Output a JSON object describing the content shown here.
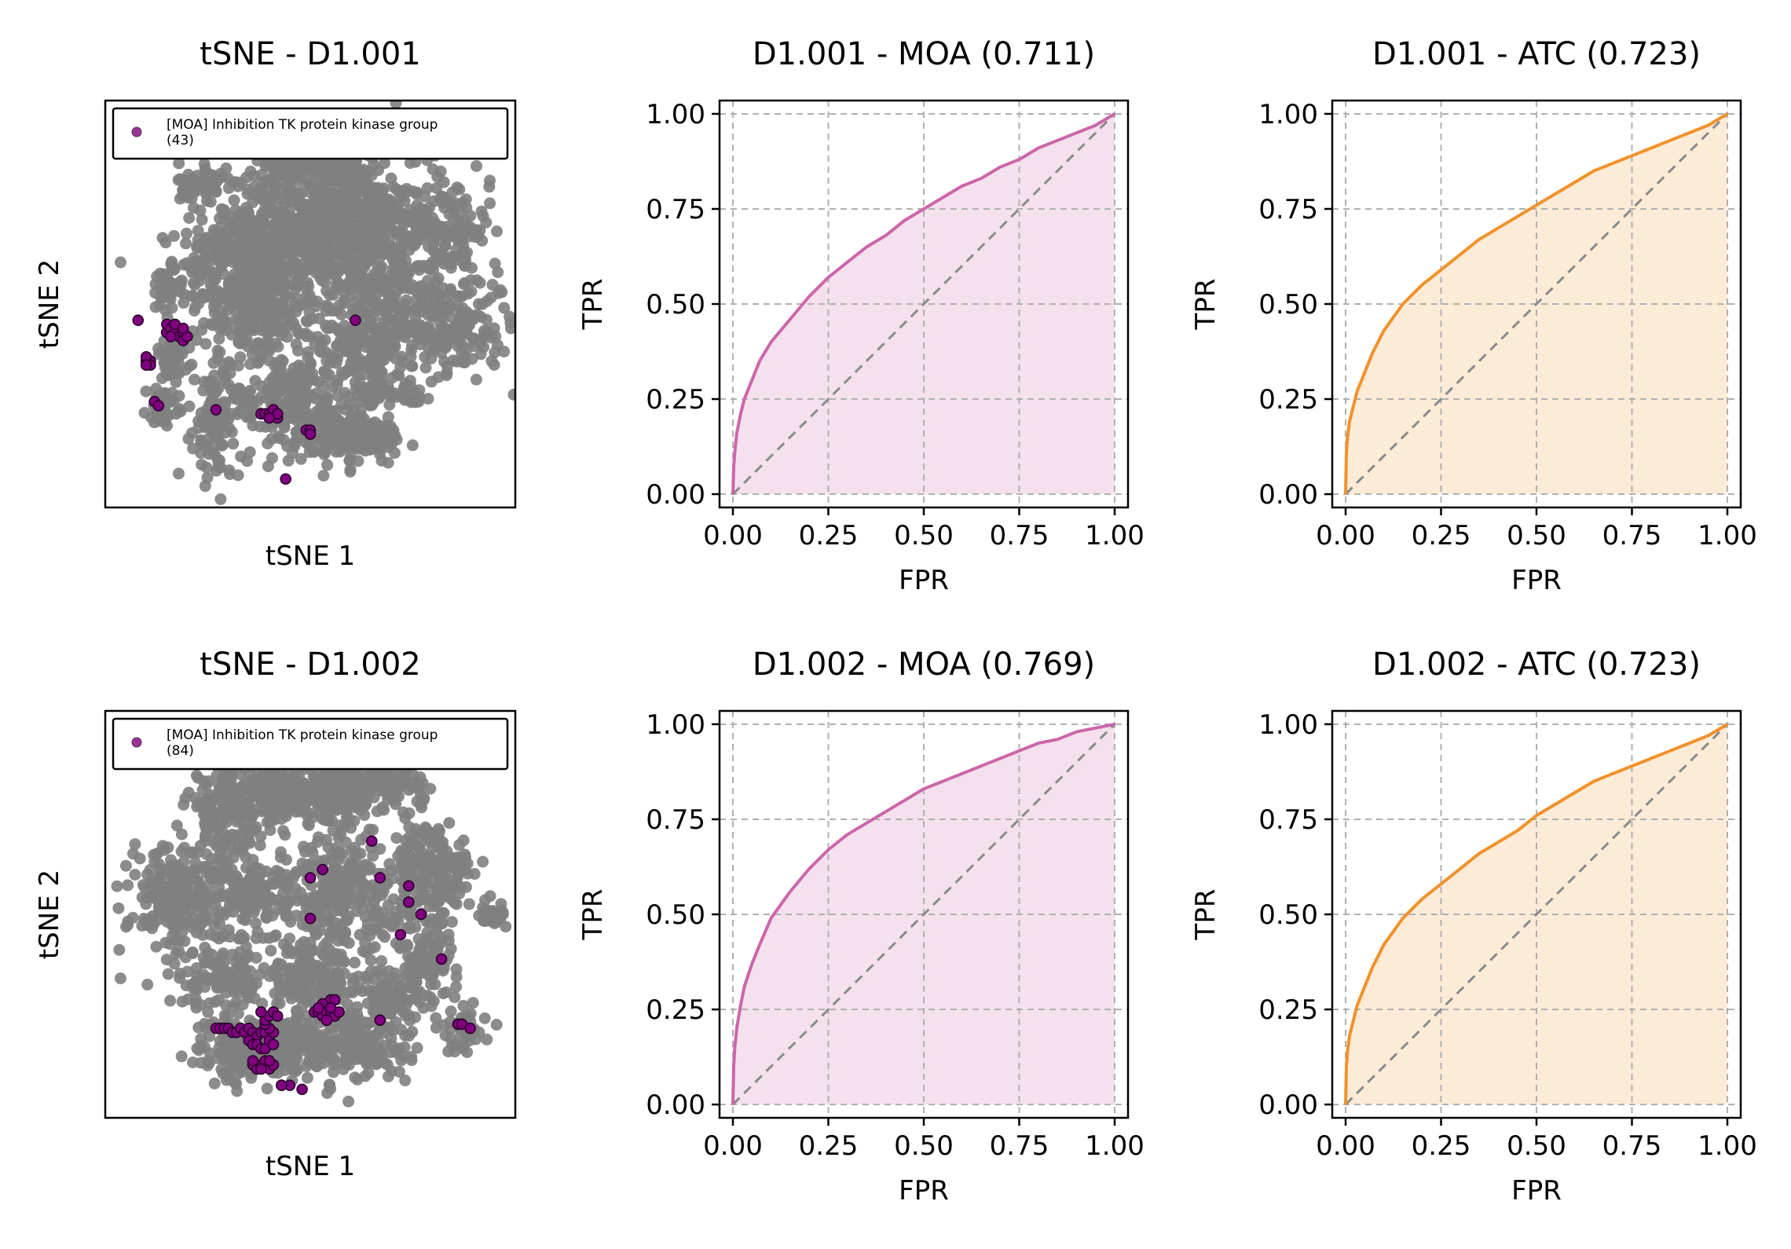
{
  "colors": {
    "background_points": "#808080",
    "highlight_points": "#800080",
    "highlight_edge": "#2a002a",
    "moa_curve": "#cc66aa",
    "moa_fill": "#f5e0ee",
    "atc_curve": "#f0922b",
    "atc_fill": "#fcebd7",
    "diagonal": "#8a8a8a",
    "grid": "#b0b0b0"
  },
  "chart_data": [
    {
      "type": "scatter",
      "id": "tsne-d1-001",
      "title": "tSNE - D1.001",
      "xlabel": "tSNE 1",
      "ylabel": "tSNE 2",
      "legend": {
        "location": "top",
        "label_line1": "[MOA] Inhibition TK protein kinase group",
        "label_line2": "(43)"
      },
      "background_clusters": [
        {
          "x": 0.32,
          "y": 0.56,
          "sx": 0.07,
          "sy": 0.09,
          "n": 260
        },
        {
          "x": 0.45,
          "y": 0.67,
          "sx": 0.1,
          "sy": 0.08,
          "n": 380
        },
        {
          "x": 0.56,
          "y": 0.72,
          "sx": 0.09,
          "sy": 0.08,
          "n": 320
        },
        {
          "x": 0.66,
          "y": 0.62,
          "sx": 0.06,
          "sy": 0.1,
          "n": 220
        },
        {
          "x": 0.82,
          "y": 0.68,
          "sx": 0.06,
          "sy": 0.08,
          "n": 180
        },
        {
          "x": 0.83,
          "y": 0.45,
          "sx": 0.08,
          "sy": 0.06,
          "n": 240
        },
        {
          "x": 0.62,
          "y": 0.4,
          "sx": 0.05,
          "sy": 0.06,
          "n": 150
        },
        {
          "x": 0.5,
          "y": 0.86,
          "sx": 0.07,
          "sy": 0.03,
          "n": 120
        },
        {
          "x": 0.24,
          "y": 0.79,
          "sx": 0.03,
          "sy": 0.03,
          "n": 60
        },
        {
          "x": 0.42,
          "y": 0.48,
          "sx": 0.06,
          "sy": 0.05,
          "n": 130
        },
        {
          "x": 0.45,
          "y": 0.26,
          "sx": 0.08,
          "sy": 0.06,
          "n": 200
        },
        {
          "x": 0.57,
          "y": 0.18,
          "sx": 0.06,
          "sy": 0.04,
          "n": 120
        },
        {
          "x": 0.27,
          "y": 0.22,
          "sx": 0.03,
          "sy": 0.08,
          "n": 110
        },
        {
          "x": 0.15,
          "y": 0.54,
          "sx": 0.02,
          "sy": 0.03,
          "n": 40
        },
        {
          "x": 0.16,
          "y": 0.37,
          "sx": 0.02,
          "sy": 0.03,
          "n": 50
        },
        {
          "x": 0.14,
          "y": 0.25,
          "sx": 0.02,
          "sy": 0.02,
          "n": 40
        },
        {
          "x": 0.66,
          "y": 0.17,
          "sx": 0.04,
          "sy": 0.03,
          "n": 50
        },
        {
          "x": 0.66,
          "y": 0.29,
          "sx": 0.03,
          "sy": 0.03,
          "n": 40
        },
        {
          "x": 0.75,
          "y": 0.28,
          "sx": 0.02,
          "sy": 0.02,
          "n": 20
        }
      ],
      "highlight_points": [
        [
          0.08,
          0.46
        ],
        [
          0.15,
          0.43
        ],
        [
          0.15,
          0.45
        ],
        [
          0.16,
          0.44
        ],
        [
          0.17,
          0.43
        ],
        [
          0.18,
          0.42
        ],
        [
          0.19,
          0.43
        ],
        [
          0.19,
          0.41
        ],
        [
          0.17,
          0.45
        ],
        [
          0.2,
          0.42
        ],
        [
          0.19,
          0.44
        ],
        [
          0.16,
          0.42
        ],
        [
          0.1,
          0.36
        ],
        [
          0.11,
          0.36
        ],
        [
          0.1,
          0.37
        ],
        [
          0.11,
          0.35
        ],
        [
          0.1,
          0.35
        ],
        [
          0.12,
          0.26
        ],
        [
          0.13,
          0.25
        ],
        [
          0.27,
          0.24
        ],
        [
          0.38,
          0.23
        ],
        [
          0.39,
          0.23
        ],
        [
          0.4,
          0.23
        ],
        [
          0.41,
          0.23
        ],
        [
          0.42,
          0.22
        ],
        [
          0.41,
          0.24
        ],
        [
          0.42,
          0.23
        ],
        [
          0.4,
          0.22
        ],
        [
          0.49,
          0.19
        ],
        [
          0.5,
          0.19
        ],
        [
          0.5,
          0.18
        ],
        [
          0.44,
          0.07
        ],
        [
          0.61,
          0.46
        ]
      ]
    },
    {
      "type": "line",
      "id": "roc-d1-001-moa",
      "title": "D1.001 - MOA (0.711)",
      "xlabel": "FPR",
      "ylabel": "TPR",
      "series_color_key": "moa",
      "xlim": [
        0,
        1
      ],
      "ylim": [
        0,
        1
      ],
      "xticks": [
        "0.00",
        "0.25",
        "0.50",
        "0.75",
        "1.00"
      ],
      "yticks": [
        "0.00",
        "0.25",
        "0.50",
        "0.75",
        "1.00"
      ],
      "x": [
        0,
        0.002,
        0.005,
        0.01,
        0.02,
        0.03,
        0.05,
        0.07,
        0.1,
        0.15,
        0.2,
        0.25,
        0.3,
        0.35,
        0.4,
        0.45,
        0.5,
        0.55,
        0.6,
        0.65,
        0.7,
        0.75,
        0.8,
        0.85,
        0.9,
        0.95,
        1.0
      ],
      "y": [
        0,
        0.07,
        0.11,
        0.16,
        0.21,
        0.25,
        0.3,
        0.35,
        0.4,
        0.46,
        0.52,
        0.57,
        0.61,
        0.65,
        0.68,
        0.72,
        0.75,
        0.78,
        0.81,
        0.83,
        0.86,
        0.88,
        0.91,
        0.93,
        0.95,
        0.97,
        1.0
      ]
    },
    {
      "type": "line",
      "id": "roc-d1-001-atc",
      "title": "D1.001 - ATC (0.723)",
      "xlabel": "FPR",
      "ylabel": "TPR",
      "series_color_key": "atc",
      "xlim": [
        0,
        1
      ],
      "ylim": [
        0,
        1
      ],
      "xticks": [
        "0.00",
        "0.25",
        "0.50",
        "0.75",
        "1.00"
      ],
      "yticks": [
        "0.00",
        "0.25",
        "0.50",
        "0.75",
        "1.00"
      ],
      "x": [
        0,
        0.002,
        0.005,
        0.01,
        0.02,
        0.03,
        0.05,
        0.07,
        0.1,
        0.15,
        0.2,
        0.25,
        0.3,
        0.35,
        0.4,
        0.45,
        0.5,
        0.55,
        0.6,
        0.65,
        0.7,
        0.75,
        0.8,
        0.85,
        0.9,
        0.95,
        1.0
      ],
      "y": [
        0,
        0.11,
        0.15,
        0.19,
        0.23,
        0.27,
        0.32,
        0.37,
        0.43,
        0.5,
        0.55,
        0.59,
        0.63,
        0.67,
        0.7,
        0.73,
        0.76,
        0.79,
        0.82,
        0.85,
        0.87,
        0.89,
        0.91,
        0.93,
        0.95,
        0.97,
        1.0
      ]
    },
    {
      "type": "scatter",
      "id": "tsne-d1-002",
      "title": "tSNE - D1.002",
      "xlabel": "tSNE 1",
      "ylabel": "tSNE 2",
      "legend": {
        "location": "top",
        "label_line1": "[MOA] Inhibition TK protein kinase group",
        "label_line2": "(84)"
      },
      "background_clusters": [
        {
          "x": 0.3,
          "y": 0.77,
          "sx": 0.05,
          "sy": 0.05,
          "n": 160
        },
        {
          "x": 0.42,
          "y": 0.8,
          "sx": 0.05,
          "sy": 0.04,
          "n": 160
        },
        {
          "x": 0.55,
          "y": 0.8,
          "sx": 0.06,
          "sy": 0.04,
          "n": 180
        },
        {
          "x": 0.7,
          "y": 0.82,
          "sx": 0.04,
          "sy": 0.03,
          "n": 90
        },
        {
          "x": 0.18,
          "y": 0.54,
          "sx": 0.06,
          "sy": 0.08,
          "n": 230
        },
        {
          "x": 0.35,
          "y": 0.55,
          "sx": 0.05,
          "sy": 0.06,
          "n": 150
        },
        {
          "x": 0.58,
          "y": 0.54,
          "sx": 0.08,
          "sy": 0.08,
          "n": 280
        },
        {
          "x": 0.8,
          "y": 0.6,
          "sx": 0.05,
          "sy": 0.06,
          "n": 180
        },
        {
          "x": 0.78,
          "y": 0.4,
          "sx": 0.04,
          "sy": 0.05,
          "n": 110
        },
        {
          "x": 0.3,
          "y": 0.34,
          "sx": 0.05,
          "sy": 0.04,
          "n": 100
        },
        {
          "x": 0.5,
          "y": 0.35,
          "sx": 0.06,
          "sy": 0.04,
          "n": 140
        },
        {
          "x": 0.42,
          "y": 0.18,
          "sx": 0.06,
          "sy": 0.04,
          "n": 160
        },
        {
          "x": 0.6,
          "y": 0.18,
          "sx": 0.07,
          "sy": 0.05,
          "n": 200
        },
        {
          "x": 0.7,
          "y": 0.3,
          "sx": 0.04,
          "sy": 0.04,
          "n": 80
        },
        {
          "x": 0.3,
          "y": 0.16,
          "sx": 0.04,
          "sy": 0.04,
          "n": 80
        },
        {
          "x": 0.94,
          "y": 0.5,
          "sx": 0.02,
          "sy": 0.02,
          "n": 30
        },
        {
          "x": 0.88,
          "y": 0.22,
          "sx": 0.03,
          "sy": 0.03,
          "n": 40
        }
      ],
      "highlight_points": [
        [
          0.65,
          0.68
        ],
        [
          0.5,
          0.59
        ],
        [
          0.53,
          0.61
        ],
        [
          0.5,
          0.49
        ],
        [
          0.67,
          0.59
        ],
        [
          0.74,
          0.57
        ],
        [
          0.74,
          0.53
        ],
        [
          0.77,
          0.5
        ],
        [
          0.72,
          0.45
        ],
        [
          0.82,
          0.39
        ],
        [
          0.67,
          0.24
        ],
        [
          0.55,
          0.29
        ],
        [
          0.56,
          0.29
        ],
        [
          0.53,
          0.28
        ],
        [
          0.51,
          0.26
        ],
        [
          0.52,
          0.26
        ],
        [
          0.53,
          0.25
        ],
        [
          0.54,
          0.26
        ],
        [
          0.55,
          0.26
        ],
        [
          0.56,
          0.25
        ],
        [
          0.57,
          0.26
        ],
        [
          0.55,
          0.27
        ],
        [
          0.52,
          0.27
        ],
        [
          0.54,
          0.24
        ],
        [
          0.27,
          0.22
        ],
        [
          0.28,
          0.22
        ],
        [
          0.29,
          0.22
        ],
        [
          0.3,
          0.22
        ],
        [
          0.31,
          0.21
        ],
        [
          0.32,
          0.21
        ],
        [
          0.33,
          0.22
        ],
        [
          0.34,
          0.21
        ],
        [
          0.35,
          0.22
        ],
        [
          0.36,
          0.21
        ],
        [
          0.37,
          0.2
        ],
        [
          0.38,
          0.21
        ],
        [
          0.39,
          0.21
        ],
        [
          0.35,
          0.19
        ],
        [
          0.36,
          0.18
        ],
        [
          0.37,
          0.18
        ],
        [
          0.38,
          0.17
        ],
        [
          0.39,
          0.17
        ],
        [
          0.4,
          0.19
        ],
        [
          0.41,
          0.18
        ],
        [
          0.41,
          0.21
        ],
        [
          0.4,
          0.22
        ],
        [
          0.39,
          0.23
        ],
        [
          0.39,
          0.24
        ],
        [
          0.4,
          0.25
        ],
        [
          0.41,
          0.26
        ],
        [
          0.42,
          0.25
        ],
        [
          0.38,
          0.26
        ],
        [
          0.36,
          0.13
        ],
        [
          0.37,
          0.12
        ],
        [
          0.38,
          0.13
        ],
        [
          0.4,
          0.12
        ],
        [
          0.41,
          0.13
        ],
        [
          0.39,
          0.14
        ],
        [
          0.38,
          0.12
        ],
        [
          0.4,
          0.14
        ],
        [
          0.36,
          0.14
        ],
        [
          0.45,
          0.08
        ],
        [
          0.48,
          0.07
        ],
        [
          0.43,
          0.08
        ],
        [
          0.86,
          0.23
        ],
        [
          0.87,
          0.23
        ],
        [
          0.89,
          0.22
        ]
      ]
    },
    {
      "type": "line",
      "id": "roc-d1-002-moa",
      "title": "D1.002 - MOA (0.769)",
      "xlabel": "FPR",
      "ylabel": "TPR",
      "series_color_key": "moa",
      "xlim": [
        0,
        1
      ],
      "ylim": [
        0,
        1
      ],
      "xticks": [
        "0.00",
        "0.25",
        "0.50",
        "0.75",
        "1.00"
      ],
      "yticks": [
        "0.00",
        "0.25",
        "0.50",
        "0.75",
        "1.00"
      ],
      "x": [
        0,
        0.002,
        0.005,
        0.01,
        0.02,
        0.03,
        0.05,
        0.07,
        0.1,
        0.15,
        0.2,
        0.25,
        0.3,
        0.35,
        0.4,
        0.45,
        0.5,
        0.55,
        0.6,
        0.65,
        0.7,
        0.75,
        0.8,
        0.85,
        0.9,
        0.95,
        1.0
      ],
      "y": [
        0,
        0.1,
        0.15,
        0.2,
        0.26,
        0.31,
        0.37,
        0.42,
        0.49,
        0.56,
        0.62,
        0.67,
        0.71,
        0.74,
        0.77,
        0.8,
        0.83,
        0.85,
        0.87,
        0.89,
        0.91,
        0.93,
        0.95,
        0.96,
        0.98,
        0.99,
        1.0
      ]
    },
    {
      "type": "line",
      "id": "roc-d1-002-atc",
      "title": "D1.002 - ATC (0.723)",
      "xlabel": "FPR",
      "ylabel": "TPR",
      "series_color_key": "atc",
      "xlim": [
        0,
        1
      ],
      "ylim": [
        0,
        1
      ],
      "xticks": [
        "0.00",
        "0.25",
        "0.50",
        "0.75",
        "1.00"
      ],
      "yticks": [
        "0.00",
        "0.25",
        "0.50",
        "0.75",
        "1.00"
      ],
      "x": [
        0,
        0.002,
        0.005,
        0.01,
        0.02,
        0.03,
        0.05,
        0.07,
        0.1,
        0.15,
        0.2,
        0.25,
        0.3,
        0.35,
        0.4,
        0.45,
        0.5,
        0.55,
        0.6,
        0.65,
        0.7,
        0.75,
        0.8,
        0.85,
        0.9,
        0.95,
        1.0
      ],
      "y": [
        0,
        0.1,
        0.14,
        0.18,
        0.22,
        0.26,
        0.31,
        0.36,
        0.42,
        0.49,
        0.54,
        0.58,
        0.62,
        0.66,
        0.69,
        0.72,
        0.76,
        0.79,
        0.82,
        0.85,
        0.87,
        0.89,
        0.91,
        0.93,
        0.95,
        0.97,
        1.0
      ]
    }
  ]
}
